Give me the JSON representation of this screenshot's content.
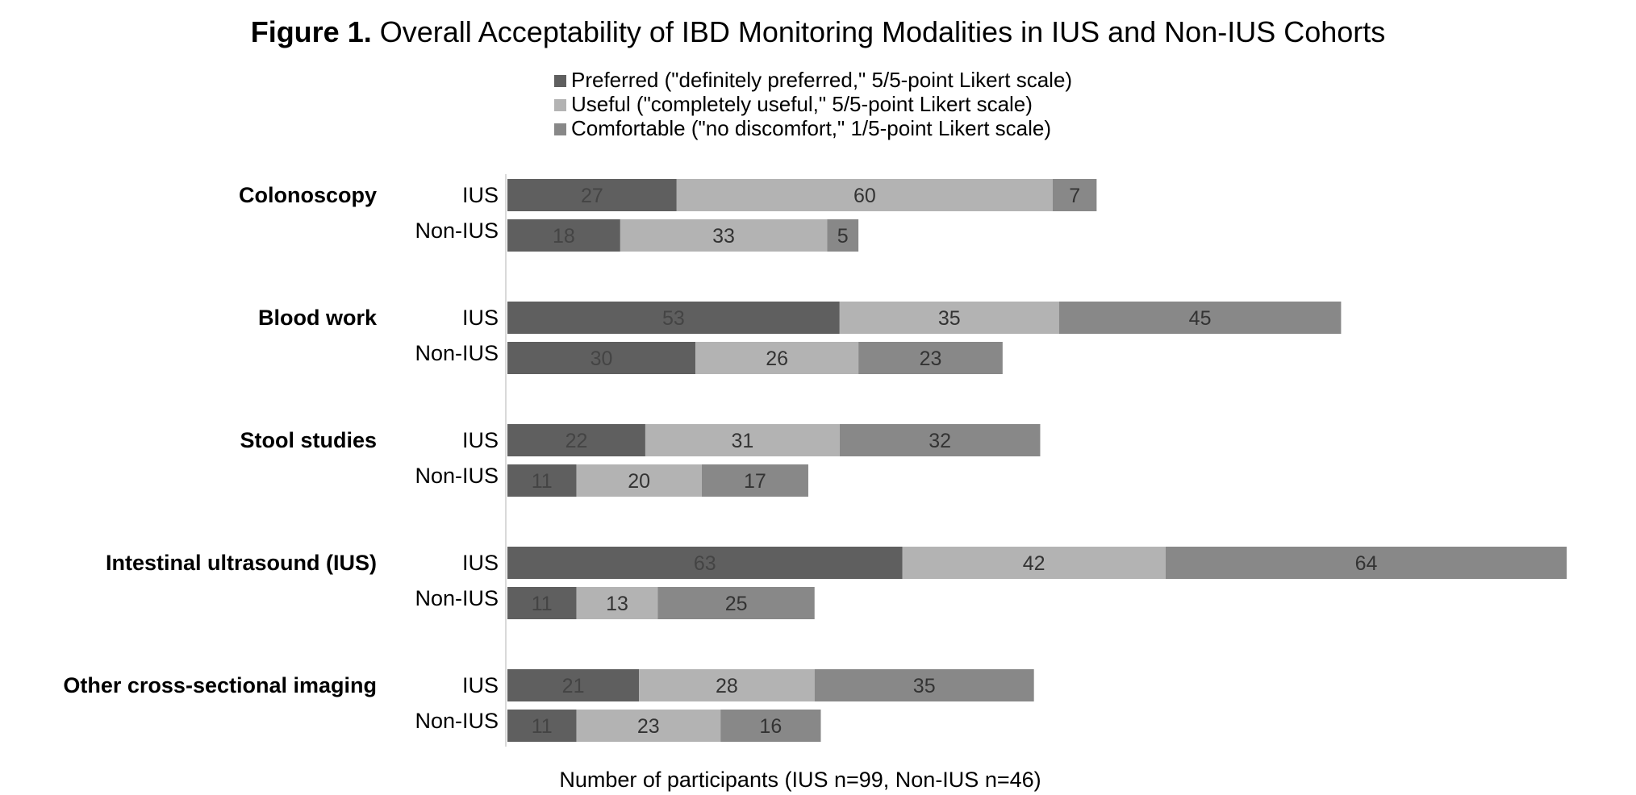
{
  "chart_data": {
    "type": "bar",
    "orientation": "horizontal",
    "stacked": true,
    "title_prefix": "Figure 1.",
    "title": "Overall Acceptability of IBD Monitoring Modalities in IUS and Non-IUS Cohorts",
    "xlabel": "Number of participants (IUS n=99, Non-IUS n=46)",
    "ylabel": "",
    "grid": false,
    "legend_position": "top",
    "groups": [
      "Colonoscopy",
      "Blood work",
      "Stool studies",
      "Intestinal ultrasound (IUS)",
      "Other cross-sectional imaging"
    ],
    "cohorts": [
      "IUS",
      "Non-IUS"
    ],
    "series": [
      {
        "name": "Preferred (\"definitely preferred,\" 5/5-point Likert scale)",
        "color": "#5f5f5f",
        "values": [
          [
            27,
            18
          ],
          [
            53,
            30
          ],
          [
            22,
            11
          ],
          [
            63,
            11
          ],
          [
            21,
            11
          ]
        ]
      },
      {
        "name": "Useful (\"completely useful,\" 5/5-point Likert scale)",
        "color": "#b3b3b3",
        "values": [
          [
            60,
            33
          ],
          [
            35,
            26
          ],
          [
            31,
            20
          ],
          [
            42,
            13
          ],
          [
            28,
            23
          ]
        ]
      },
      {
        "name": "Comfortable (\"no discomfort,\" 1/5-point Likert scale)",
        "color": "#888888",
        "values": [
          [
            7,
            5
          ],
          [
            45,
            23
          ],
          [
            32,
            17
          ],
          [
            64,
            25
          ],
          [
            35,
            16
          ]
        ]
      }
    ],
    "xlim": [
      0,
      170
    ]
  }
}
